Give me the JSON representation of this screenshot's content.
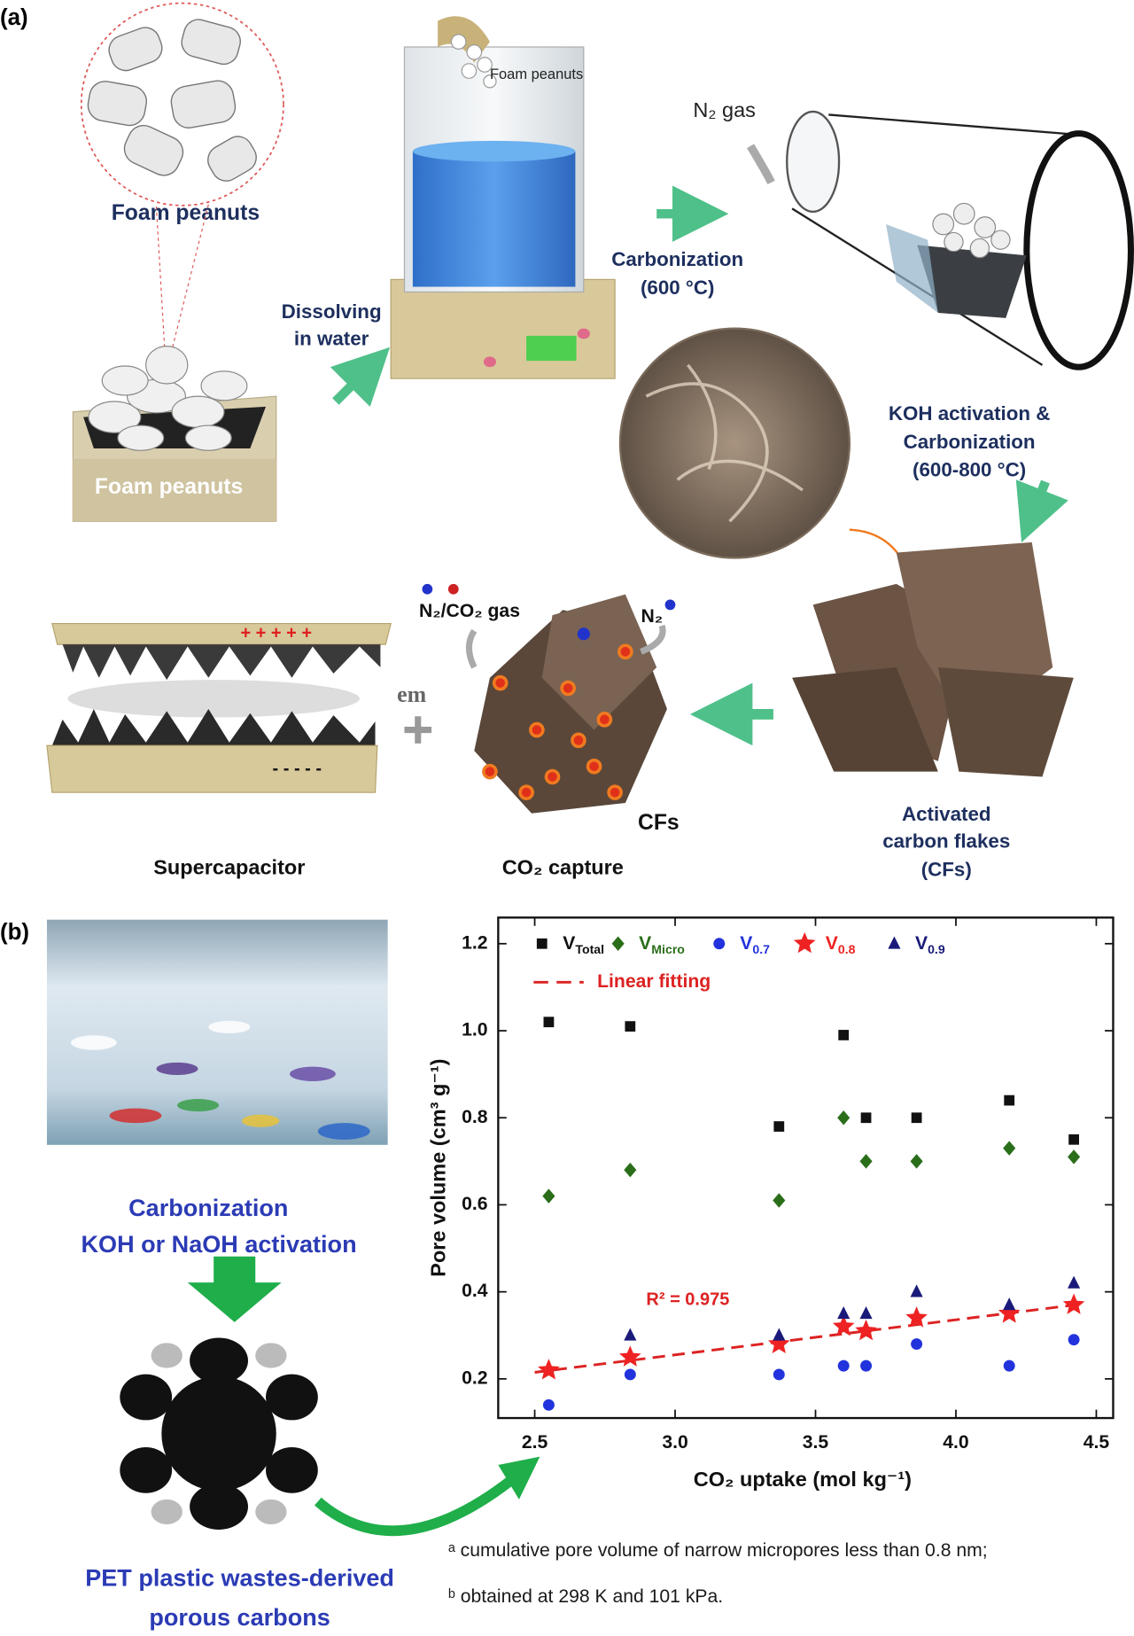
{
  "panel_a": {
    "label": "(a)",
    "foam_peanuts_zoom": "Foam peanuts",
    "foam_peanuts_pour": "Foam peanuts",
    "foam_peanuts_box": "Foam peanuts",
    "dissolving": [
      "Dissolving",
      "in water"
    ],
    "carbonization": [
      "Carbonization",
      "(600 °C)"
    ],
    "n2_gas": "N₂ gas",
    "koh": [
      "KOH activation &",
      "Carbonization",
      "(600-800 °C)"
    ],
    "activated": [
      "Activated",
      "carbon flakes",
      "(CFs)"
    ],
    "gas_in": "N₂/CO₂ gas",
    "gas_out": "N₂",
    "cfs": "CFs",
    "em": "em",
    "plus_signs": "+ + + + +",
    "minus_signs": "- - - - -",
    "supercapacitor": "Supercapacitor",
    "co2_capture": "CO₂ capture"
  },
  "panel_b": {
    "label": "(b)",
    "process": [
      "Carbonization",
      "KOH or NaOH activation"
    ],
    "product": [
      "PET plastic wastes-derived",
      "porous carbons"
    ],
    "footnotes": [
      "ᵃ cumulative pore volume of narrow micropores less than 0.8 nm;",
      "ᵇ obtained at 298 K and 101 kPa."
    ]
  },
  "chart_data": {
    "type": "scatter",
    "x_label": "CO₂ uptake (mol kg⁻¹)",
    "y_label": "Pore volume (cm³ g⁻¹)",
    "x": [
      2.55,
      2.84,
      3.37,
      3.6,
      3.68,
      3.86,
      4.19,
      4.42
    ],
    "series": [
      {
        "name": "V",
        "subscript": "Total",
        "color": "#111111",
        "marker": "square",
        "values": [
          1.02,
          1.01,
          0.78,
          0.99,
          0.8,
          0.8,
          0.84,
          0.75
        ]
      },
      {
        "name": "V",
        "subscript": "Micro",
        "color": "#2a6e1a",
        "marker": "diamond",
        "values": [
          0.62,
          0.68,
          0.61,
          0.8,
          0.7,
          0.7,
          0.73,
          0.71
        ]
      },
      {
        "name": "V",
        "subscript": "0.7",
        "color": "#2233dd",
        "marker": "circle",
        "values": [
          0.14,
          0.21,
          0.21,
          0.23,
          0.23,
          0.28,
          0.23,
          0.29
        ]
      },
      {
        "name": "V",
        "subscript": "0.8",
        "color": "#ee2222",
        "marker": "star",
        "values": [
          0.22,
          0.25,
          0.28,
          0.32,
          0.31,
          0.34,
          0.35,
          0.37
        ]
      },
      {
        "name": "V",
        "subscript": "0.9",
        "color": "#1a1a7a",
        "marker": "triangle",
        "values": [
          null,
          0.3,
          0.3,
          0.35,
          0.35,
          0.4,
          0.37,
          0.42
        ]
      }
    ],
    "fit": {
      "name": "Linear fitting",
      "color": "#dd2222",
      "x": [
        2.5,
        4.45
      ],
      "values": [
        0.215,
        0.372
      ]
    },
    "annotation": "R² = 0.975",
    "xlim": [
      2.37,
      4.56
    ],
    "ylim": [
      0.11,
      1.26
    ],
    "xticks": [
      2.5,
      {
        "value": 3.0,
        "label": "3.0"
      },
      3.5,
      {
        "value": 4.0,
        "label": "4.0"
      },
      4.5
    ],
    "yticks": [
      0.2,
      0.4,
      0.6,
      0.8,
      {
        "value": 1.0,
        "label": "1.0"
      },
      1.2
    ]
  }
}
